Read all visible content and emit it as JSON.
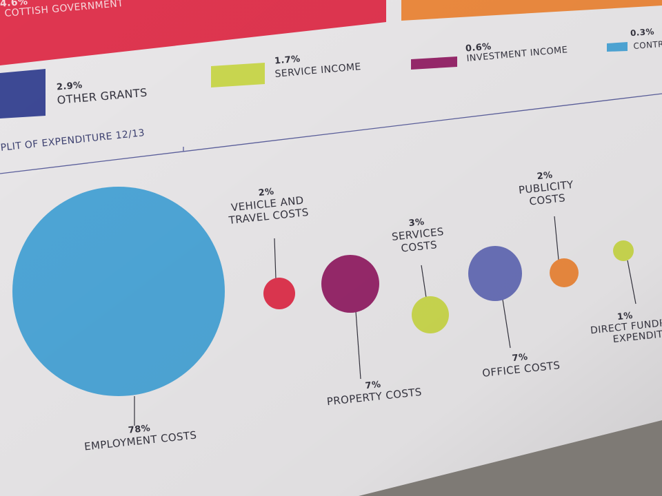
{
  "colors": {
    "background": "#7e7a75",
    "paper": "#e9e7e9",
    "text": "#33323d",
    "rule": "#5b5f9c",
    "red": "#df3650",
    "orange": "#ec8a3f",
    "navy": "#3d4995",
    "lime": "#cbd850",
    "purple": "#97296b",
    "light_blue": "#4ea6d7",
    "periwinkle": "#6a71b8"
  },
  "top_banner": {
    "percent": "4.6%",
    "label": "COTTISH GOVERNMENT"
  },
  "legend": [
    {
      "percent": "2.9%",
      "label": "OTHER GRANTS",
      "color": "navy"
    },
    {
      "percent": "1.7%",
      "label": "SERVICE INCOME",
      "color": "lime"
    },
    {
      "percent": "0.6%",
      "label": "INVESTMENT INCOME",
      "color": "purple"
    },
    {
      "percent": "0.3%",
      "label": "CONTR",
      "color": "light_blue"
    }
  ],
  "section_title": "PLIT OF EXPENDITURE 12/13",
  "chart_data": {
    "type": "bubble",
    "title": "PLIT OF EXPENDITURE 12/13",
    "unit": "%",
    "items": [
      {
        "label": "EMPLOYMENT COSTS",
        "value": 78,
        "display": "78%",
        "color": "#4ea6d7"
      },
      {
        "label": "VEHICLE AND TRAVEL COSTS",
        "value": 2,
        "display": "2%",
        "color": "#df3650"
      },
      {
        "label": "PROPERTY COSTS",
        "value": 7,
        "display": "7%",
        "color": "#97296b"
      },
      {
        "label": "SERVICES COSTS",
        "value": 3,
        "display": "3%",
        "color": "#cbd850"
      },
      {
        "label": "OFFICE COSTS",
        "value": 7,
        "display": "7%",
        "color": "#6a71b8"
      },
      {
        "label": "PUBLICITY COSTS",
        "value": 2,
        "display": "2%",
        "color": "#ec8a3f"
      },
      {
        "label": "DIRECT FUNDR EXPENDIT",
        "value": 1,
        "display": "1%",
        "color": "#cbd850"
      }
    ],
    "labels": {
      "employment": {
        "pct": "78%",
        "line1": "EMPLOYMENT COSTS"
      },
      "vehicle": {
        "pct": "2%",
        "line1": "VEHICLE AND",
        "line2": "TRAVEL COSTS"
      },
      "property": {
        "pct": "7%",
        "line1": "PROPERTY COSTS"
      },
      "services": {
        "pct": "3%",
        "line1": "SERVICES",
        "line2": "COSTS"
      },
      "office": {
        "pct": "7%",
        "line1": "OFFICE COSTS"
      },
      "publicity": {
        "pct": "2%",
        "line1": "PUBLICITY",
        "line2": "COSTS"
      },
      "direct": {
        "pct": "1%",
        "line1": "DIRECT FUNDR",
        "line2": "EXPENDIT"
      }
    }
  }
}
